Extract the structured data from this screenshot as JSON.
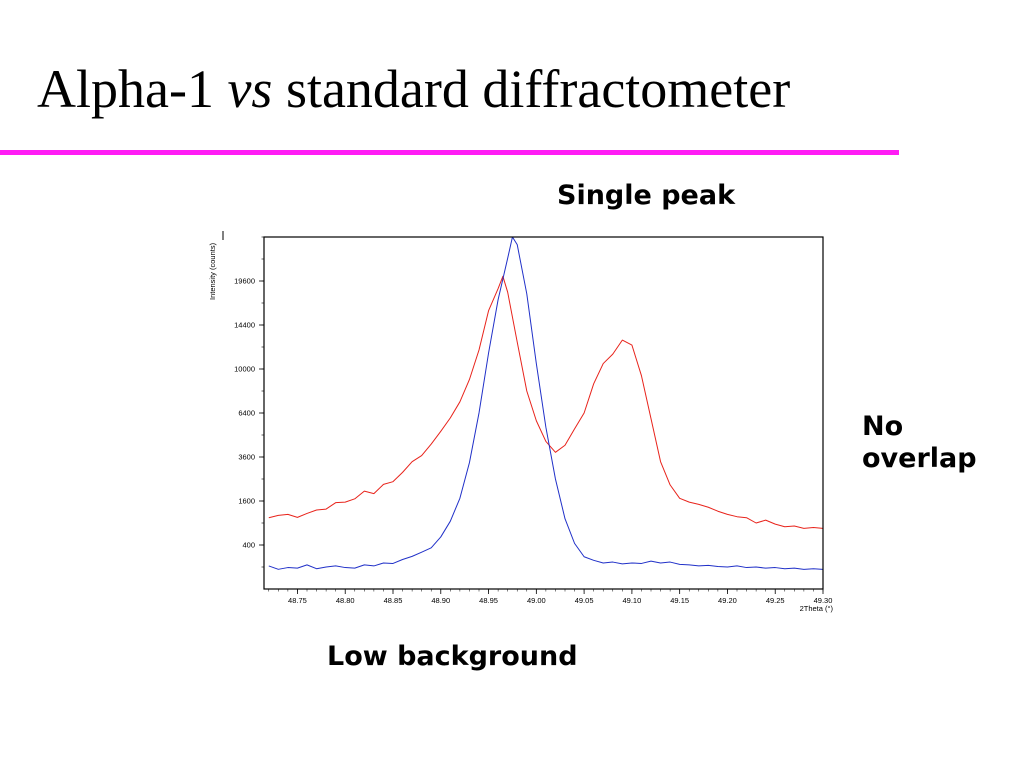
{
  "slide": {
    "title_pre": "Alpha-1 ",
    "title_italic": "vs",
    "title_post": " standard diffractometer",
    "accent_color": "#ff1cf5"
  },
  "annotations": {
    "single_peak": "Single peak",
    "no_overlap_line1": "No",
    "no_overlap_line2": "overlap",
    "low_background": "Low background"
  },
  "chart_data": {
    "type": "line",
    "xlabel": "2Theta (°)",
    "ylabel": "Intensity (counts)",
    "xlim": [
      48.715,
      49.3
    ],
    "x_ticks": [
      "48.75",
      "48.80",
      "48.85",
      "48.90",
      "48.95",
      "49.00",
      "49.05",
      "49.10",
      "49.15",
      "49.20",
      "49.25",
      "49.30"
    ],
    "y_scale": "sqrt",
    "y_ticks": [
      400,
      1600,
      3600,
      6400,
      10000,
      14400,
      19600
    ],
    "ylim": [
      0,
      25600
    ],
    "series": [
      {
        "color": "#e8231b",
        "points": [
          [
            48.72,
            1050
          ],
          [
            48.73,
            1120
          ],
          [
            48.74,
            1150
          ],
          [
            48.75,
            1060
          ],
          [
            48.76,
            1180
          ],
          [
            48.77,
            1290
          ],
          [
            48.78,
            1320
          ],
          [
            48.79,
            1540
          ],
          [
            48.8,
            1560
          ],
          [
            48.81,
            1680
          ],
          [
            48.82,
            1980
          ],
          [
            48.83,
            1880
          ],
          [
            48.84,
            2260
          ],
          [
            48.85,
            2380
          ],
          [
            48.86,
            2810
          ],
          [
            48.87,
            3350
          ],
          [
            48.88,
            3680
          ],
          [
            48.89,
            4340
          ],
          [
            48.9,
            5140
          ],
          [
            48.91,
            6050
          ],
          [
            48.92,
            7240
          ],
          [
            48.93,
            9070
          ],
          [
            48.94,
            11800
          ],
          [
            48.95,
            16000
          ],
          [
            48.96,
            18650
          ],
          [
            48.965,
            20200
          ],
          [
            48.97,
            18200
          ],
          [
            48.98,
            12600
          ],
          [
            48.99,
            8100
          ],
          [
            49.0,
            5850
          ],
          [
            49.01,
            4500
          ],
          [
            49.02,
            3860
          ],
          [
            49.03,
            4270
          ],
          [
            49.04,
            5300
          ],
          [
            49.05,
            6400
          ],
          [
            49.06,
            8700
          ],
          [
            49.07,
            10500
          ],
          [
            49.08,
            11400
          ],
          [
            49.09,
            12800
          ],
          [
            49.1,
            12300
          ],
          [
            49.11,
            9400
          ],
          [
            49.12,
            6000
          ],
          [
            49.13,
            3350
          ],
          [
            49.14,
            2240
          ],
          [
            49.15,
            1700
          ],
          [
            49.16,
            1560
          ],
          [
            49.17,
            1480
          ],
          [
            49.18,
            1380
          ],
          [
            49.19,
            1250
          ],
          [
            49.2,
            1150
          ],
          [
            49.21,
            1080
          ],
          [
            49.22,
            1050
          ],
          [
            49.23,
            900
          ],
          [
            49.24,
            980
          ],
          [
            49.25,
            870
          ],
          [
            49.26,
            800
          ],
          [
            49.27,
            820
          ],
          [
            49.28,
            760
          ],
          [
            49.29,
            780
          ],
          [
            49.3,
            760
          ]
        ]
      },
      {
        "color": "#2030c8",
        "points": [
          [
            48.72,
            110
          ],
          [
            48.73,
            80
          ],
          [
            48.74,
            95
          ],
          [
            48.75,
            90
          ],
          [
            48.76,
            120
          ],
          [
            48.77,
            85
          ],
          [
            48.78,
            100
          ],
          [
            48.79,
            110
          ],
          [
            48.8,
            95
          ],
          [
            48.81,
            90
          ],
          [
            48.82,
            120
          ],
          [
            48.83,
            110
          ],
          [
            48.84,
            140
          ],
          [
            48.85,
            135
          ],
          [
            48.86,
            180
          ],
          [
            48.87,
            220
          ],
          [
            48.88,
            280
          ],
          [
            48.89,
            350
          ],
          [
            48.9,
            560
          ],
          [
            48.91,
            950
          ],
          [
            48.92,
            1700
          ],
          [
            48.93,
            3300
          ],
          [
            48.94,
            6400
          ],
          [
            48.95,
            11500
          ],
          [
            48.96,
            17300
          ],
          [
            48.97,
            22600
          ],
          [
            48.975,
            25600
          ],
          [
            48.98,
            24500
          ],
          [
            48.99,
            18000
          ],
          [
            49.0,
            10500
          ],
          [
            49.01,
            5400
          ],
          [
            49.02,
            2500
          ],
          [
            49.03,
            1020
          ],
          [
            49.04,
            430
          ],
          [
            49.05,
            215
          ],
          [
            49.06,
            170
          ],
          [
            49.07,
            140
          ],
          [
            49.08,
            150
          ],
          [
            49.09,
            130
          ],
          [
            49.1,
            140
          ],
          [
            49.11,
            135
          ],
          [
            49.12,
            160
          ],
          [
            49.13,
            140
          ],
          [
            49.14,
            150
          ],
          [
            49.15,
            125
          ],
          [
            49.16,
            120
          ],
          [
            49.17,
            110
          ],
          [
            49.18,
            115
          ],
          [
            49.19,
            105
          ],
          [
            49.2,
            100
          ],
          [
            49.21,
            110
          ],
          [
            49.22,
            95
          ],
          [
            49.23,
            100
          ],
          [
            49.24,
            90
          ],
          [
            49.25,
            95
          ],
          [
            49.26,
            85
          ],
          [
            49.27,
            90
          ],
          [
            49.28,
            80
          ],
          [
            49.29,
            85
          ],
          [
            49.3,
            80
          ]
        ]
      }
    ]
  }
}
